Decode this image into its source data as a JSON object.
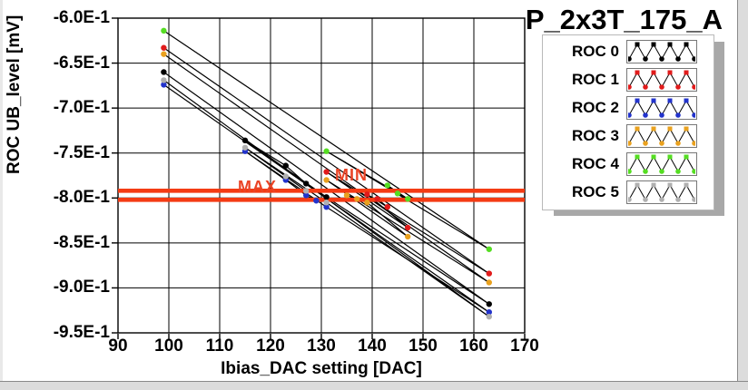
{
  "chart_data": {
    "type": "line",
    "title": "P_2x3T_175_A",
    "xlabel": "Ibias_DAC setting [DAC]",
    "ylabel": "ROC UB_level [mV]",
    "xlim": [
      90,
      170
    ],
    "ylim": [
      -0.95,
      -0.6
    ],
    "grid": true,
    "legend_position": "top-right",
    "line_color": "#000000",
    "x_ticks": {
      "values": [
        90,
        100,
        110,
        120,
        130,
        140,
        150,
        160,
        170
      ],
      "labels": [
        "90",
        "100",
        "110",
        "120",
        "130",
        "140",
        "150",
        "160",
        "170"
      ]
    },
    "y_ticks": {
      "values": [
        -0.6,
        -0.65,
        -0.7,
        -0.75,
        -0.8,
        -0.85,
        -0.9,
        -0.95
      ],
      "labels": [
        "-6.0E-1",
        "-6.5E-1",
        "-7.0E-1",
        "-7.5E-1",
        "-8.0E-1",
        "-8.5E-1",
        "-9.0E-1",
        "-9.5E-1"
      ]
    },
    "cursors": [
      {
        "name": "MAX",
        "value": -0.792,
        "color": "#f43b14"
      },
      {
        "name": "MIN",
        "value": -0.802,
        "color": "#f43b14"
      }
    ],
    "series": [
      {
        "name": "ROC 0",
        "color": "#000000",
        "points": [
          [
            99,
            -0.66
          ],
          [
            163,
            -0.918
          ],
          [
            131,
            -0.799
          ],
          [
            115,
            -0.736
          ],
          [
            123,
            -0.764
          ],
          [
            127,
            -0.784
          ]
        ]
      },
      {
        "name": "ROC 1",
        "color": "#e11b1b",
        "points": [
          [
            99,
            -0.633
          ],
          [
            163,
            -0.884
          ],
          [
            131,
            -0.771
          ],
          [
            147,
            -0.833
          ],
          [
            139,
            -0.796
          ],
          [
            143,
            -0.81
          ],
          [
            141,
            -0.801
          ]
        ]
      },
      {
        "name": "ROC 2",
        "color": "#2233cc",
        "points": [
          [
            99,
            -0.674
          ],
          [
            163,
            -0.927
          ],
          [
            131,
            -0.81
          ],
          [
            115,
            -0.748
          ],
          [
            123,
            -0.78
          ],
          [
            127,
            -0.797
          ],
          [
            129,
            -0.803
          ]
        ]
      },
      {
        "name": "ROC 3",
        "color": "#e9a11f",
        "points": [
          [
            99,
            -0.64
          ],
          [
            163,
            -0.894
          ],
          [
            131,
            -0.78
          ],
          [
            147,
            -0.843
          ],
          [
            139,
            -0.805
          ],
          [
            135,
            -0.797
          ],
          [
            137,
            -0.801
          ]
        ]
      },
      {
        "name": "ROC 4",
        "color": "#55dd22",
        "points": [
          [
            99,
            -0.614
          ],
          [
            163,
            -0.857
          ],
          [
            131,
            -0.748
          ],
          [
            147,
            -0.801
          ],
          [
            143,
            -0.786
          ],
          [
            145,
            -0.795
          ]
        ]
      },
      {
        "name": "ROC 5",
        "color": "#b0b0b0",
        "points": [
          [
            99,
            -0.669
          ],
          [
            163,
            -0.932
          ],
          [
            131,
            -0.805
          ],
          [
            115,
            -0.744
          ],
          [
            123,
            -0.776
          ],
          [
            127,
            -0.792
          ]
        ]
      }
    ]
  },
  "legend": {
    "icon": "zigzag-line-icon"
  }
}
